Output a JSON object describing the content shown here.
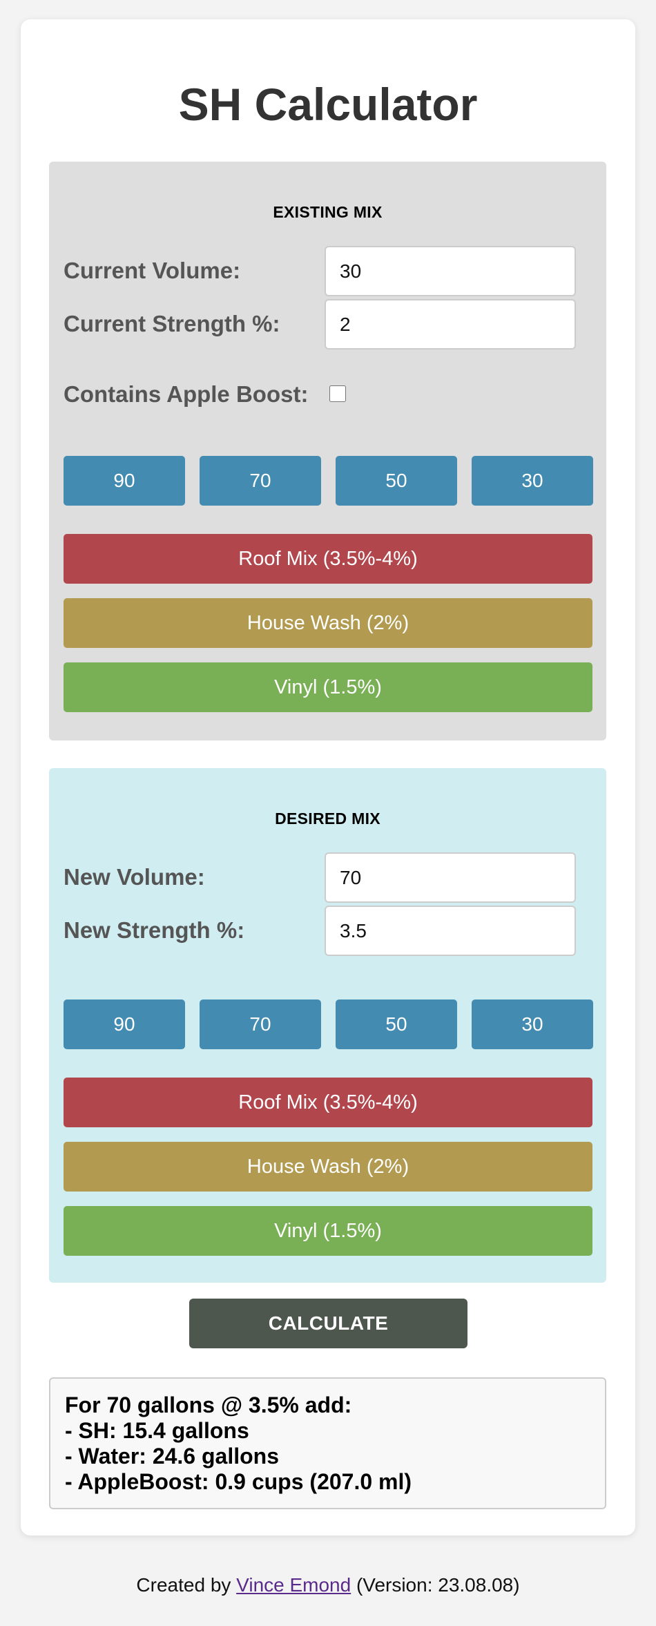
{
  "page": {
    "title": "SH Calculator"
  },
  "existing_mix": {
    "heading": "EXISTING MIX",
    "volume_label": "Current Volume:",
    "volume_value": "30",
    "strength_label": "Current Strength %:",
    "strength_value": "2",
    "apple_boost_label": "Contains Apple Boost:",
    "apple_boost_checked": false,
    "volume_presets": [
      "90",
      "70",
      "50",
      "30"
    ],
    "mix_presets": [
      "Roof Mix (3.5%-4%)",
      "House Wash (2%)",
      "Vinyl (1.5%)"
    ]
  },
  "desired_mix": {
    "heading": "DESIRED MIX",
    "volume_label": "New Volume:",
    "volume_value": "70",
    "strength_label": "New Strength %:",
    "strength_value": "3.5",
    "volume_presets": [
      "90",
      "70",
      "50",
      "30"
    ],
    "mix_presets": [
      "Roof Mix (3.5%-4%)",
      "House Wash (2%)",
      "Vinyl (1.5%)"
    ]
  },
  "calculate_label": "CALCULATE",
  "result": {
    "lines": [
      "For 70 gallons @ 3.5% add:",
      "- SH: 15.4 gallons",
      "- Water: 24.6 gallons",
      "- AppleBoost: 0.9 cups (207.0 ml)"
    ]
  },
  "footer": {
    "prefix": "Created by ",
    "author": "Vince Emond",
    "suffix": " (Version: 23.08.08)"
  },
  "colors": {
    "preset_blue": "#438bb0",
    "roof_mix": "#b1474d",
    "house_wash": "#b29b51",
    "vinyl": "#79b055",
    "existing_panel": "#dedede",
    "desired_panel": "#d0eef2",
    "calculate": "#4e574e"
  }
}
